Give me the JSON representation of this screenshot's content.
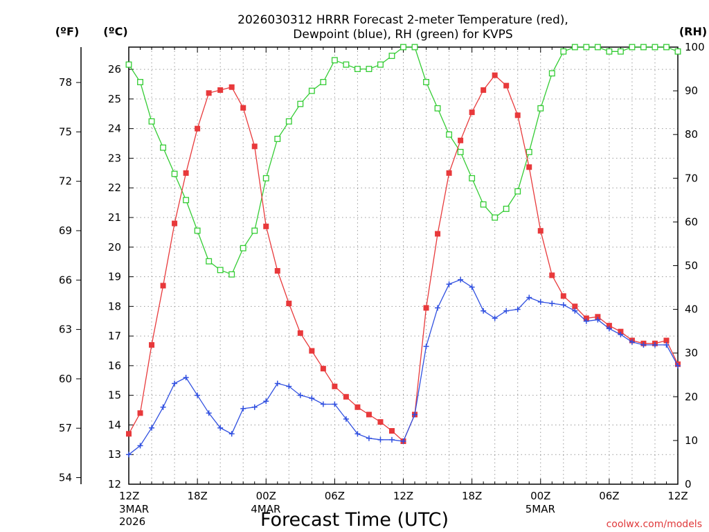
{
  "chart_data": {
    "type": "line",
    "title_lines": [
      "2026030312 HRRR Forecast 2-meter Temperature (red),",
      "Dewpoint (blue), RH (green) for KVPS"
    ],
    "y_left_outer_label": "(ºF)",
    "y_left_inner_label": "(ºC)",
    "y_right_label": "(RH)",
    "xlabel": "Forecast Time (UTC)",
    "credit": "coolwx.com/models",
    "x_range": [
      0,
      48
    ],
    "celsius_range": [
      12,
      26.75
    ],
    "rh_range": [
      0,
      100
    ],
    "celsius_ticks": [
      "12",
      "13",
      "14",
      "15",
      "16",
      "17",
      "18",
      "19",
      "20",
      "21",
      "22",
      "23",
      "24",
      "25",
      "26"
    ],
    "fahrenheit_ticks": [
      "54",
      "57",
      "60",
      "63",
      "66",
      "69",
      "72",
      "75",
      "78"
    ],
    "rh_ticks": [
      "0",
      "10",
      "20",
      "30",
      "40",
      "50",
      "60",
      "70",
      "80",
      "90",
      "100"
    ],
    "x_ticks": [
      {
        "hour": 0,
        "label": "12Z",
        "sub": [
          "3MAR",
          "2026"
        ]
      },
      {
        "hour": 6,
        "label": "18Z",
        "sub": []
      },
      {
        "hour": 12,
        "label": "00Z",
        "sub": [
          "4MAR"
        ]
      },
      {
        "hour": 18,
        "label": "06Z",
        "sub": []
      },
      {
        "hour": 24,
        "label": "12Z",
        "sub": []
      },
      {
        "hour": 30,
        "label": "18Z",
        "sub": []
      },
      {
        "hour": 36,
        "label": "00Z",
        "sub": [
          "5MAR"
        ]
      },
      {
        "hour": 42,
        "label": "06Z",
        "sub": []
      },
      {
        "hour": 48,
        "label": "12Z",
        "sub": []
      }
    ],
    "series": [
      {
        "name": "2-meter Temperature",
        "axis": "celsius",
        "color": "#e8393b",
        "marker": "filled-square",
        "values": [
          13.7,
          14.4,
          16.7,
          18.7,
          20.8,
          22.5,
          24.0,
          25.2,
          25.3,
          25.4,
          24.7,
          23.4,
          20.7,
          19.2,
          18.1,
          17.1,
          16.5,
          15.9,
          15.3,
          14.95,
          14.6,
          14.35,
          14.1,
          13.8,
          13.45,
          14.35,
          17.95,
          20.45,
          22.5,
          23.6,
          24.55,
          25.3,
          25.8,
          25.45,
          24.45,
          22.7,
          20.55,
          19.05,
          18.35,
          18.0,
          17.6,
          17.65,
          17.35,
          17.15,
          16.85,
          16.75,
          16.75,
          16.85,
          16.05
        ]
      },
      {
        "name": "Dewpoint",
        "axis": "celsius",
        "color": "#2f4fe0",
        "marker": "plus",
        "values": [
          13.0,
          13.3,
          13.9,
          14.6,
          15.4,
          15.6,
          15.0,
          14.4,
          13.9,
          13.7,
          14.55,
          14.6,
          14.8,
          15.4,
          15.3,
          15.0,
          14.9,
          14.7,
          14.7,
          14.2,
          13.7,
          13.55,
          13.5,
          13.5,
          13.45,
          14.35,
          16.65,
          17.95,
          18.75,
          18.9,
          18.65,
          17.85,
          17.6,
          17.85,
          17.9,
          18.3,
          18.15,
          18.1,
          18.05,
          17.85,
          17.5,
          17.55,
          17.25,
          17.05,
          16.8,
          16.7,
          16.7,
          16.7,
          16.0
        ]
      },
      {
        "name": "RH",
        "axis": "rh",
        "color": "#33cc33",
        "marker": "open-square",
        "values": [
          96,
          92,
          83,
          77,
          71,
          65,
          58,
          51,
          49,
          48,
          54,
          58,
          70,
          79,
          83,
          87,
          90,
          92,
          97,
          96,
          95,
          95,
          96,
          98,
          100,
          100,
          92,
          86,
          80,
          76,
          70,
          64,
          61,
          63,
          67,
          76,
          86,
          94,
          99,
          100,
          100,
          100,
          99,
          99,
          100,
          100,
          100,
          100,
          99
        ]
      }
    ]
  }
}
